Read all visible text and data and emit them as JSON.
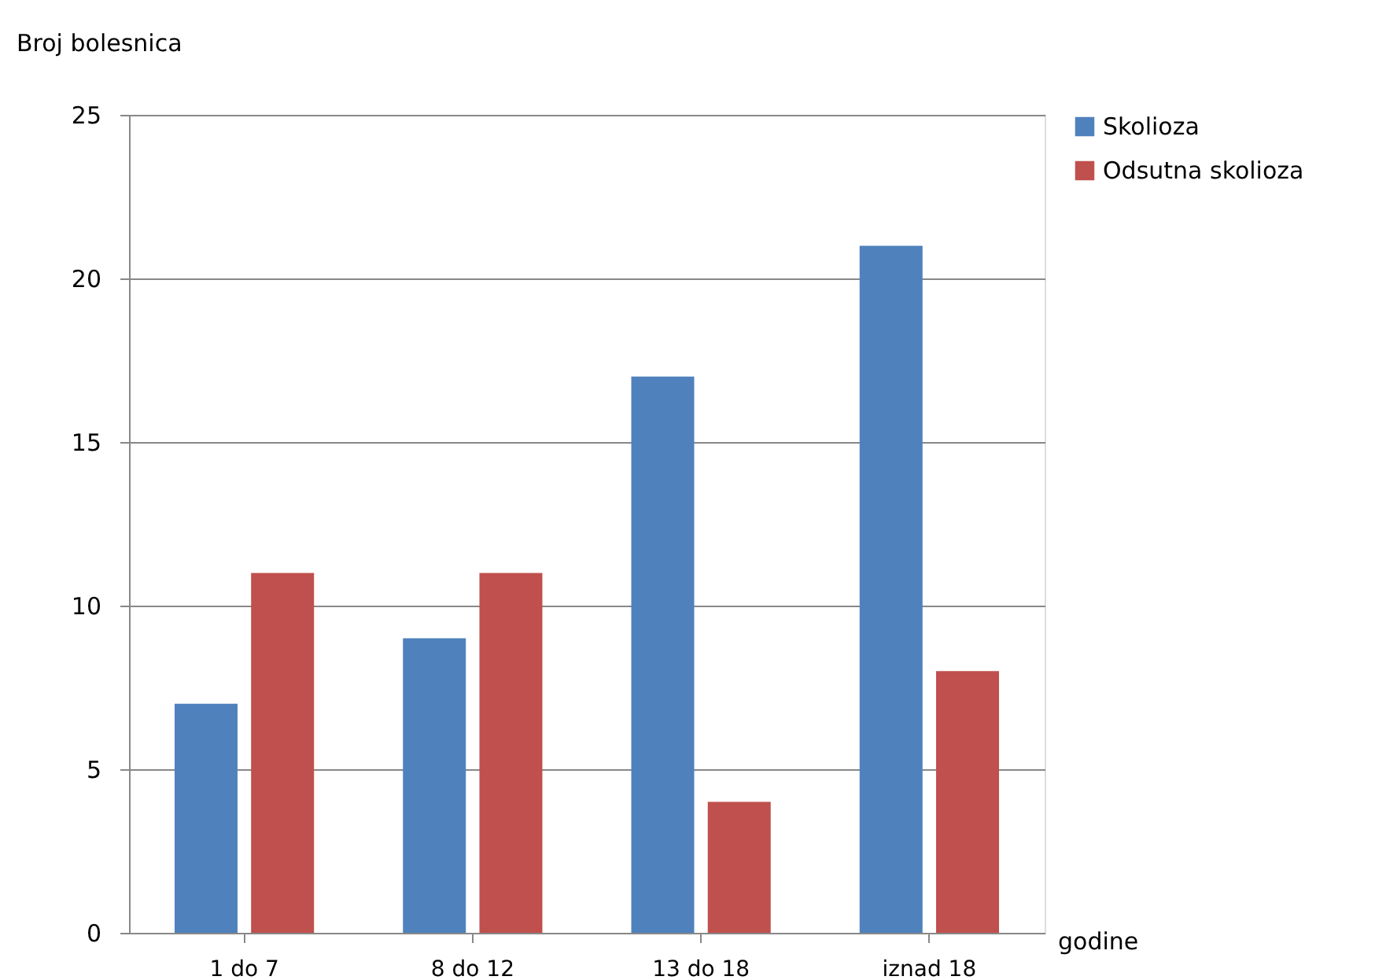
{
  "chart_data": {
    "type": "bar",
    "ylabel": "Broj bolesnica",
    "xlabel": "godine",
    "categories": [
      "1 do 7",
      "8 do 12",
      "13 do 18",
      "iznad 18"
    ],
    "series": [
      {
        "name": "Skolioza",
        "color": "#4f81bd",
        "values": [
          7,
          9,
          17,
          21
        ]
      },
      {
        "name": "Odsutna skolioza",
        "color": "#c0504d",
        "values": [
          11,
          11,
          4,
          8
        ]
      }
    ],
    "ylim": [
      0,
      25
    ],
    "yticks": [
      0,
      5,
      10,
      15,
      20,
      25
    ],
    "grid": "y",
    "legend": "right"
  }
}
